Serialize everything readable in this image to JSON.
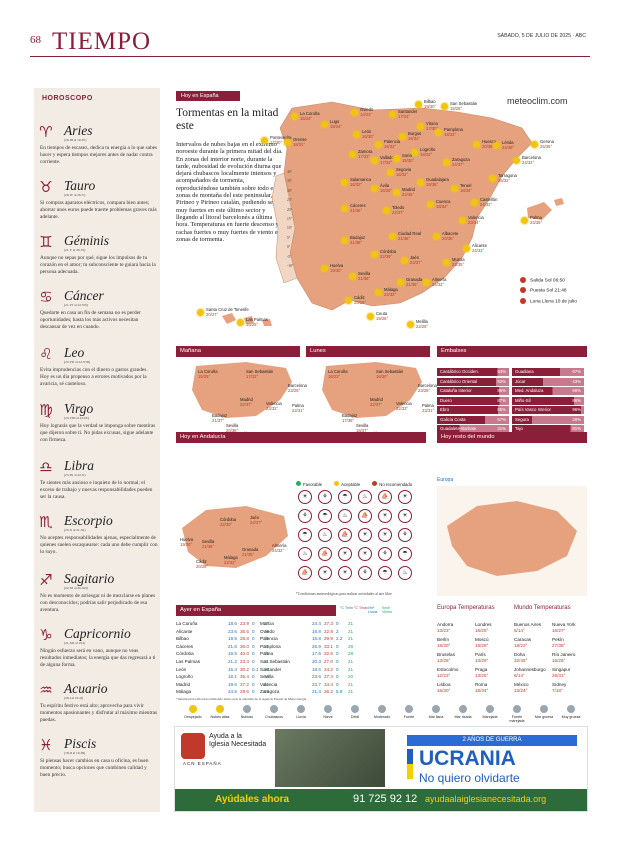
{
  "header": {
    "page_number": "68",
    "title": "TIEMPO",
    "date": "SÁBADO, 5 DE JULIO DE 2025 · ABC"
  },
  "horoscope": {
    "title": "HOROSCOPO",
    "signs": [
      {
        "glyph": "♈",
        "name": "Aries",
        "dates": "(20-III al 19-IV)",
        "text": "En tiempos de escasez, dedica tu energía a lo que sabes hacer y espera tiempos mejores antes de nadar contra corriente."
      },
      {
        "glyph": "♉",
        "name": "Tauro",
        "dates": "(20-IV al 20-V)",
        "text": "Si compras aparatos eléctricos, compara bien antes; ahorrar unos euros puede traerte problemas graves más adelante."
      },
      {
        "glyph": "♊",
        "name": "Géminis",
        "dates": "(21-V al 20-VI)",
        "text": "Aunque no sepas por qué, sigue los impulsos de tu corazón en el amor; tu subconsciente te guiará hacia la persona adecuada."
      },
      {
        "glyph": "♋",
        "name": "Cáncer",
        "dates": "(21-VI al 22-VII)",
        "text": "Quedarte en casa un fin de semana no es perder oportunidades; hasta los más activos necesitan descansar de vez en cuando."
      },
      {
        "glyph": "♌",
        "name": "Leo",
        "dates": "(23-VII al 22-VIII)",
        "text": "Evita imprudencias con el dinero o gastos grandes. Hoy es un día propenso a errores motivados por la avaricia, sé cauteloso."
      },
      {
        "glyph": "♍",
        "name": "Virgo",
        "dates": "(23-VIII al 22-IX)",
        "text": "Hoy lograrás que la verdad se imponga sobre mentiras que dijeron sobre ti. No pidas excusas, sigue adelante con firmeza."
      },
      {
        "glyph": "♎",
        "name": "Libra",
        "dates": "(23-IX al 22-X)",
        "text": "Te sientes más ansioso e inquieto de lo normal; el exceso de trabajo y nuevas responsabilidades pueden ser la causa."
      },
      {
        "glyph": "♏",
        "name": "Escorpio",
        "dates": "(23-X al 21-XI)",
        "text": "No aceptes responsabilidades ajenas, especialmente de quienes suelen escaquearse: cada uno debe cumplir con lo suyo."
      },
      {
        "glyph": "♐",
        "name": "Sagitario",
        "dates": "(22-XI al 20-XII)",
        "text": "No es momento de arriesgar ni de mezclarse en planes con desconocidos; podrías salir perjudicado de esa aventura."
      },
      {
        "glyph": "♑",
        "name": "Capricornio",
        "dates": "(21-XII al 19-I)",
        "text": "Ningún esfuerzo será en vano, aunque no veas resultados inmediatos; la energía que das regresará a ti de alguna forma."
      },
      {
        "glyph": "♒",
        "name": "Acuario",
        "dates": "(20-I al 19-II)",
        "text": "Tu espíritu festivo está alto; aprovecha para vivir momentos apasionantes y disfrutar al máximo mientras puedas."
      },
      {
        "glyph": "♓",
        "name": "Piscis",
        "dates": "(18-II al 19-III)",
        "text": "Si piensas hacer cambios en casa u oficina, es buen momento; busca opciones que combinen calidad y buen precio."
      }
    ]
  },
  "today_spain": {
    "tag": "Hoy en España",
    "headline": "Tormentas en la mitad este",
    "body": "Intervalos de nubes bajas en el extremo noroeste durante la primera mitad del día. En zonas del interior norte, durante la tarde, nubosidad de evolución diurna que dejará chubascos localmente intensos y acompañados de tormenta, reproduciéndose también sobre todo en zonas de montaña del este peninsular, Pirineo y Pirineo catalán, pudiendo ser muy fuertes en este último sector y llegando al litoral barcelonés a última hora. Temperaturas en fuerte descenso y rachas fuertes o muy fuertes de viento en zonas de tormenta.",
    "brand": "meteoclim.com"
  },
  "map_cities": [
    {
      "n": "La Coruña",
      "t": "15/24°"
    },
    {
      "n": "Oviedo",
      "t": "14/23°"
    },
    {
      "n": "Santander",
      "t": "17/24°"
    },
    {
      "n": "Bilbao",
      "t": "19/30°"
    },
    {
      "n": "San Sebastián",
      "t": "18/28°"
    },
    {
      "n": "Lugo",
      "t": "15/24°"
    },
    {
      "n": "León",
      "t": "16/30°"
    },
    {
      "n": "Burgos",
      "t": "16/31°"
    },
    {
      "n": "Vitoria",
      "t": "17/30°"
    },
    {
      "n": "Pamplona",
      "t": "18/33°"
    },
    {
      "n": "Pontevedra",
      "t": "17/30°"
    },
    {
      "n": "Orense",
      "t": "18/31°"
    },
    {
      "n": "Palencia",
      "t": "16/32°"
    },
    {
      "n": "Logroño",
      "t": "18/33°"
    },
    {
      "n": "Huesca",
      "t": "20/36°"
    },
    {
      "n": "Lérida",
      "t": "24/38°"
    },
    {
      "n": "Gerona",
      "t": "25/35°"
    },
    {
      "n": "Zamora",
      "t": "17/33°"
    },
    {
      "n": "Valladolid",
      "t": "17/33°"
    },
    {
      "n": "Soria",
      "t": "15/30°"
    },
    {
      "n": "Zaragoza",
      "t": "24/37°"
    },
    {
      "n": "Barcelona",
      "t": "24/32°"
    },
    {
      "n": "Salamanca",
      "t": "16/32°"
    },
    {
      "n": "Segovia",
      "t": "16/32°"
    },
    {
      "n": "Guadalajara",
      "t": "19/36°"
    },
    {
      "n": "Tarragona",
      "t": "26/32°"
    },
    {
      "n": "Ávila",
      "t": "16/28°"
    },
    {
      "n": "Madrid",
      "t": "22/36°"
    },
    {
      "n": "Teruel",
      "t": "18/34°"
    },
    {
      "n": "Castellón",
      "t": "24/32°"
    },
    {
      "n": "Cáceres",
      "t": "21/36°"
    },
    {
      "n": "Toledo",
      "t": "22/37°"
    },
    {
      "n": "Cuenca",
      "t": "18/34°"
    },
    {
      "n": "Valencia",
      "t": "23/34°"
    },
    {
      "n": "Palma",
      "t": "23/35°"
    },
    {
      "n": "Badajoz",
      "t": "21/38°"
    },
    {
      "n": "Ciudad Real",
      "t": "21/36°"
    },
    {
      "n": "Albacete",
      "t": "20/35°"
    },
    {
      "n": "Alicante",
      "t": "24/32°"
    },
    {
      "n": "Córdoba",
      "t": "22/39°"
    },
    {
      "n": "Jaén",
      "t": "24/37°"
    },
    {
      "n": "Murcia",
      "t": "23/35°"
    },
    {
      "n": "Huelva",
      "t": "19/30°"
    },
    {
      "n": "Sevilla",
      "t": "21/38°"
    },
    {
      "n": "Granada",
      "t": "21/35°"
    },
    {
      "n": "Almería",
      "t": "24/32°"
    },
    {
      "n": "Cádiz",
      "t": "20/28°"
    },
    {
      "n": "Málaga",
      "t": "22/32°"
    },
    {
      "n": "Ceuta",
      "t": "19/28°"
    },
    {
      "n": "Melilla",
      "t": "22/28°"
    },
    {
      "n": "Santa Cruz de Tenerife",
      "t": "20/27°"
    },
    {
      "n": "Las Palmas",
      "t": "18/25°"
    }
  ],
  "temp_scale": [
    "40°",
    "35°",
    "30°",
    "25°",
    "20°",
    "15°",
    "10°",
    "5°",
    "0°",
    "-5°",
    "-10°"
  ],
  "sun_moon": {
    "sunrise": "Salida Sol 06:50",
    "sunset": "Puesta Sol 21:48",
    "moon": "Luna Llena 10 de julio"
  },
  "tomorrow": {
    "tag": "Mañana",
    "cities": [
      {
        "n": "La Coruña",
        "t": "15/25°"
      },
      {
        "n": "San Sebastián",
        "t": "17/22°"
      },
      {
        "n": "Barcelona",
        "t": "23/29°"
      },
      {
        "n": "Madrid",
        "t": "22/37°"
      },
      {
        "n": "Valencia",
        "t": "23/32°"
      },
      {
        "n": "Palma",
        "t": "22/31°"
      },
      {
        "n": "Badajoz",
        "t": "21/37°"
      },
      {
        "n": "Sevilla",
        "t": "20/38°"
      },
      {
        "n": "Málaga",
        "t": "23/31°"
      },
      {
        "n": "S.C.Tenerife",
        "t": "20/27°"
      }
    ]
  },
  "monday": {
    "tag": "Lunes",
    "cities": [
      {
        "n": "La Coruña",
        "t": "16/23°"
      },
      {
        "n": "San Sebastián",
        "t": "16/30°"
      },
      {
        "n": "Barcelona",
        "t": "23/28°"
      },
      {
        "n": "Madrid",
        "t": "22/37°"
      },
      {
        "n": "Valencia",
        "t": "22/33°"
      },
      {
        "n": "Palma",
        "t": "23/31°"
      },
      {
        "n": "Badajoz",
        "t": "17/38°"
      },
      {
        "n": "Sevilla",
        "t": "18/37°"
      },
      {
        "n": "Málaga",
        "t": "23/32°"
      },
      {
        "n": "S.C.Tenerife",
        "t": "18/27°"
      }
    ]
  },
  "reservoirs": {
    "tag": "Embalses",
    "left": [
      {
        "n": "Cantábrico Occiden.",
        "p": "84%"
      },
      {
        "n": "Cantábrico Oriental",
        "p": "82%"
      },
      {
        "n": "Cataluña Interior",
        "p": "86%"
      },
      {
        "n": "Duero",
        "p": "87%"
      },
      {
        "n": "Ebro",
        "p": "85%"
      },
      {
        "n": "Galicia Costa",
        "p": "67%"
      },
      {
        "n": "Guadalete-Barbate",
        "p": "31%"
      },
      {
        "n": "Guadalquivir",
        "p": "56%"
      }
    ],
    "right": [
      {
        "n": "Guadiana",
        "p": "67%"
      },
      {
        "n": "Júcar",
        "p": "43%"
      },
      {
        "n": "Med. Andaluza",
        "p": "56%"
      },
      {
        "n": "Miño-Sil",
        "p": "86%"
      },
      {
        "n": "País Vasco Interior",
        "p": "96%"
      },
      {
        "n": "Segura",
        "p": "28%"
      },
      {
        "n": "Tajo",
        "p": "81%"
      },
      {
        "n": "Tinto/Odiel/Piedras",
        "p": "66%"
      }
    ]
  },
  "andalucia": {
    "tag": "Hoy en Andalucía",
    "legend": [
      "Favorable",
      "Aceptable",
      "No recomendado"
    ],
    "cities": [
      {
        "n": "Córdoba",
        "t": "22/39°"
      },
      {
        "n": "Jaén",
        "t": "24/37°"
      },
      {
        "n": "Huelva",
        "t": "19/30°"
      },
      {
        "n": "Sevilla",
        "t": "21/38°"
      },
      {
        "n": "Granada",
        "t": "21/35°"
      },
      {
        "n": "Almería",
        "t": "24/32°"
      },
      {
        "n": "Málaga",
        "t": "22/32°"
      },
      {
        "n": "Cádiz",
        "t": "20/28°"
      }
    ],
    "note": "*Condiciones meteorológicas para realizar actividades al aire libre"
  },
  "world": {
    "tag": "Hoy resto del mundo",
    "region": "Europa"
  },
  "yesterday": {
    "tag": "Ayer en España",
    "headers": [
      "°C Tmin",
      "°C Tmáx",
      "l/m² Lluvia",
      "Km/h Viento"
    ],
    "left": [
      [
        "La Coruña",
        "18.6",
        "23.9",
        "0",
        "27"
      ],
      [
        "Alicante",
        "23.6",
        "35.5",
        "0",
        "16"
      ],
      [
        "Bilbao",
        "19.5",
        "28.8",
        "0",
        "21"
      ],
      [
        "Cáceres",
        "21.6",
        "36.0",
        "0",
        "21"
      ],
      [
        "Córdoba",
        "19.5",
        "40.0",
        "0",
        "21"
      ],
      [
        "Las Palmas",
        "21.2",
        "23.3",
        "0",
        "21"
      ],
      [
        "León",
        "15.4",
        "30.2",
        "0.1",
        "20"
      ],
      [
        "Logroño",
        "18.1",
        "35.4",
        "0",
        "16"
      ],
      [
        "Madrid",
        "19.6",
        "37.2",
        "0",
        "21"
      ],
      [
        "Málaga",
        "24.5",
        "29.6",
        "0",
        "16"
      ]
    ],
    "right": [
      [
        "Murcia",
        "24.4",
        "37.3",
        "0",
        "21"
      ],
      [
        "Oviedo",
        "16.8",
        "22.8",
        "2",
        "21"
      ],
      [
        "Palencia",
        "15.8",
        "29.9",
        "2.2",
        "21"
      ],
      [
        "Pamplona",
        "25.9",
        "33.1",
        "0",
        "28"
      ],
      [
        "Palma",
        "17.6",
        "32.6",
        "0",
        "28"
      ],
      [
        "San Sebastián",
        "20.3",
        "27.0",
        "0",
        "21"
      ],
      [
        "Santander",
        "18.6",
        "24.2",
        "0",
        "21"
      ],
      [
        "Sevilla",
        "23.6",
        "37.4",
        "0",
        "20"
      ],
      [
        "Valencia",
        "23.7",
        "34.4",
        "0",
        "21"
      ],
      [
        "Zaragoza",
        "21.3",
        "36.2",
        "5.8",
        "21"
      ]
    ],
    "source": "*Información elaborada utilizando entre otras la obtenida de la Agencia Estatal de Meteorología"
  },
  "european_temps": {
    "title": "Europa Temperaturas",
    "rows": [
      [
        "Andorra",
        "13/23°",
        "Londres",
        "16/25°"
      ],
      [
        "Berlín",
        "16/30°",
        "Moscú",
        "16/28°"
      ],
      [
        "Bruselas",
        "13/26°",
        "París",
        "13/29°"
      ],
      [
        "Estocolmo",
        "12/23°",
        "Praga",
        "13/25°"
      ],
      [
        "Lisboa",
        "16/30°",
        "Roma",
        "18/34°"
      ]
    ]
  },
  "world_temps": {
    "title": "Mundo Temperaturas",
    "rows": [
      [
        "Buenos Aires",
        "5/14°",
        "Nueva York",
        "16/27°"
      ],
      [
        "Caracas",
        "18/22°",
        "Pekín",
        "27/38°"
      ],
      [
        "Doha",
        "32/45°",
        "Río Janeiro",
        "16/26°"
      ],
      [
        "Johannesburgo",
        "6/14°",
        "Singapur",
        "26/31°"
      ],
      [
        "México",
        "13/24°",
        "Sídney",
        "7/18°"
      ]
    ]
  },
  "weather_icons": [
    "Despejado",
    "Nubes altas",
    "Nuboso",
    "Chubascos",
    "Lluvia",
    "Nieve",
    "Débil",
    "Moderado",
    "Fuerte",
    "Mar llana",
    "Mar rizada",
    "Marejada",
    "Fuerte marejada",
    "Mar gruesa",
    "Muy gruesa"
  ],
  "ad": {
    "org1": "Ayuda a la",
    "org2": "Iglesia Necesitada",
    "acn": "ACN ESPAÑA",
    "badge": "2 AÑOS DE GUERRA",
    "title": "UCRANIA",
    "subtitle": "No quiero olvidarte",
    "cta": "Ayúdales ahora",
    "phone": "91 725 92 12",
    "url": "ayudaalaiglesianecesitada.org",
    "colors": {
      "blue": "#1f5fbf",
      "yellow": "#f5d000",
      "green": "#2e6b3a"
    }
  },
  "colors": {
    "accent": "#8b1f3a",
    "map_fill": "#e6a27e",
    "sea": "#ffffff",
    "reservoir": "#8b1f3a"
  }
}
